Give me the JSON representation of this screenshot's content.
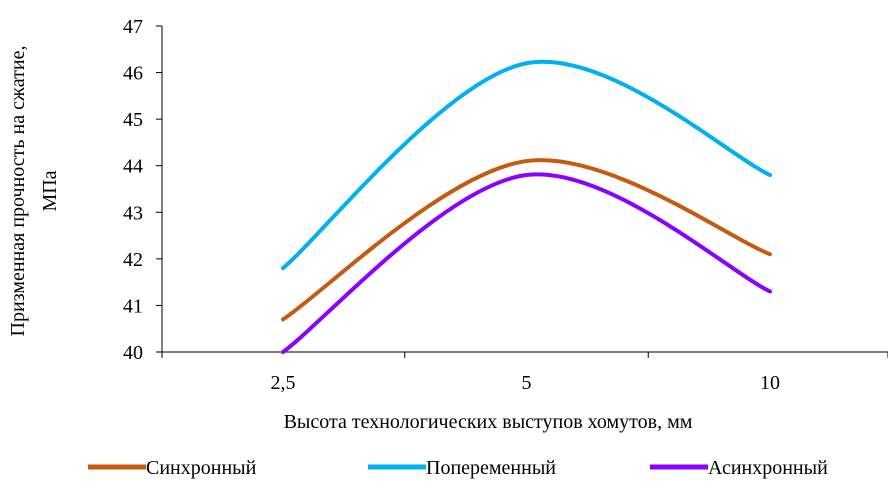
{
  "chart_data": {
    "type": "line",
    "categories": [
      "2,5",
      "5",
      "10"
    ],
    "x": [
      2.5,
      5,
      10
    ],
    "series": [
      {
        "name": "Синхронный",
        "values": [
          40.7,
          44.1,
          42.1
        ],
        "color": "#C55A11"
      },
      {
        "name": "Попеременный",
        "values": [
          41.8,
          46.2,
          43.8
        ],
        "color": "#00B0F0"
      },
      {
        "name": "Асинхронный",
        "values": [
          40.0,
          43.8,
          41.3
        ],
        "color": "#8B00FF"
      }
    ],
    "xlabel": "Высота технологических выступов хомутов, мм",
    "ylabel": [
      "Призменная прочность на сжатие,",
      "МПа"
    ],
    "ylim": [
      40,
      47
    ],
    "yticks": [
      "40",
      "41",
      "42",
      "43",
      "44",
      "45",
      "46",
      "47"
    ],
    "grid": false,
    "smooth": true,
    "legend_position": "bottom"
  }
}
